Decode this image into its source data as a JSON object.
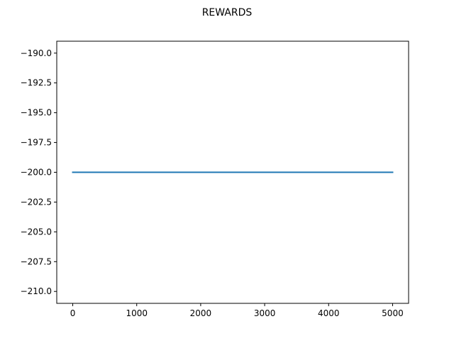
{
  "chart_data": {
    "type": "line",
    "title": "REWARDS",
    "xlabel": "",
    "ylabel": "",
    "xlim": [
      -250,
      5250
    ],
    "ylim": [
      -211,
      -189
    ],
    "x_ticks": [
      0,
      1000,
      2000,
      3000,
      4000,
      5000
    ],
    "x_tick_labels": [
      "0",
      "1000",
      "2000",
      "3000",
      "4000",
      "5000"
    ],
    "y_ticks": [
      -190.0,
      -192.5,
      -195.0,
      -197.5,
      -200.0,
      -202.5,
      -205.0,
      -207.5,
      -210.0
    ],
    "y_tick_labels": [
      "−190.0",
      "−192.5",
      "−195.0",
      "−197.5",
      "−200.0",
      "−202.5",
      "−205.0",
      "−207.5",
      "−210.0"
    ],
    "grid": false,
    "series": [
      {
        "color": "#1f77b4",
        "x": [
          0,
          5000
        ],
        "y": [
          -200,
          -200
        ]
      }
    ]
  }
}
